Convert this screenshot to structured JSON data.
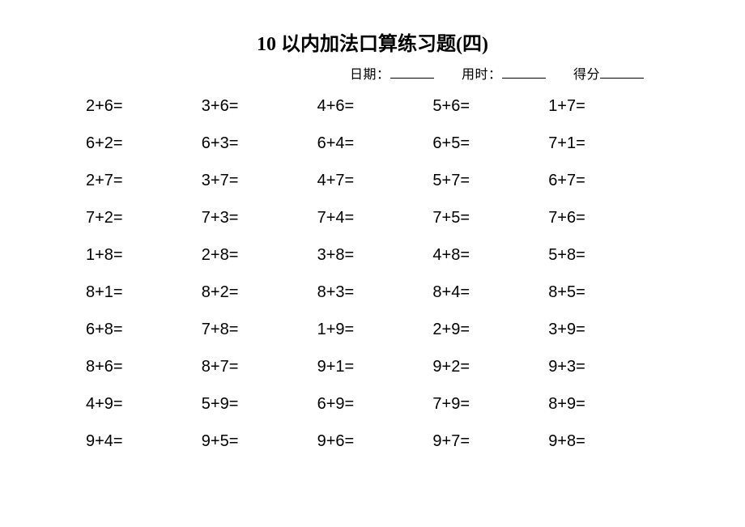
{
  "title": "10 以内加法口算练习题(四)",
  "info": {
    "date_label": "日期：",
    "time_label": "用时：",
    "score_label": "得分"
  },
  "grid": {
    "rows": [
      [
        "2+6=",
        "3+6=",
        "4+6=",
        "5+6=",
        "1+7="
      ],
      [
        "6+2=",
        "6+3=",
        "6+4=",
        "6+5=",
        "7+1="
      ],
      [
        "2+7=",
        "3+7=",
        "4+7=",
        "5+7=",
        "6+7="
      ],
      [
        "7+2=",
        "7+3=",
        "7+4=",
        "7+5=",
        "7+6="
      ],
      [
        "1+8=",
        "2+8=",
        "3+8=",
        "4+8=",
        "5+8="
      ],
      [
        "8+1=",
        "8+2=",
        "8+3=",
        "8+4=",
        "8+5="
      ],
      [
        "6+8=",
        "7+8=",
        "1+9=",
        "2+9=",
        "3+9="
      ],
      [
        "8+6=",
        "8+7=",
        "9+1=",
        "9+2=",
        "9+3="
      ],
      [
        "4+9=",
        "5+9=",
        "6+9=",
        "7+9=",
        "8+9="
      ],
      [
        "9+4=",
        "9+5=",
        "9+6=",
        "9+7=",
        "9+8="
      ]
    ]
  },
  "style": {
    "page_bg": "#ffffff",
    "text_color": "#000000",
    "title_fontsize": 24,
    "cell_fontsize": 20,
    "info_fontsize": 16
  }
}
